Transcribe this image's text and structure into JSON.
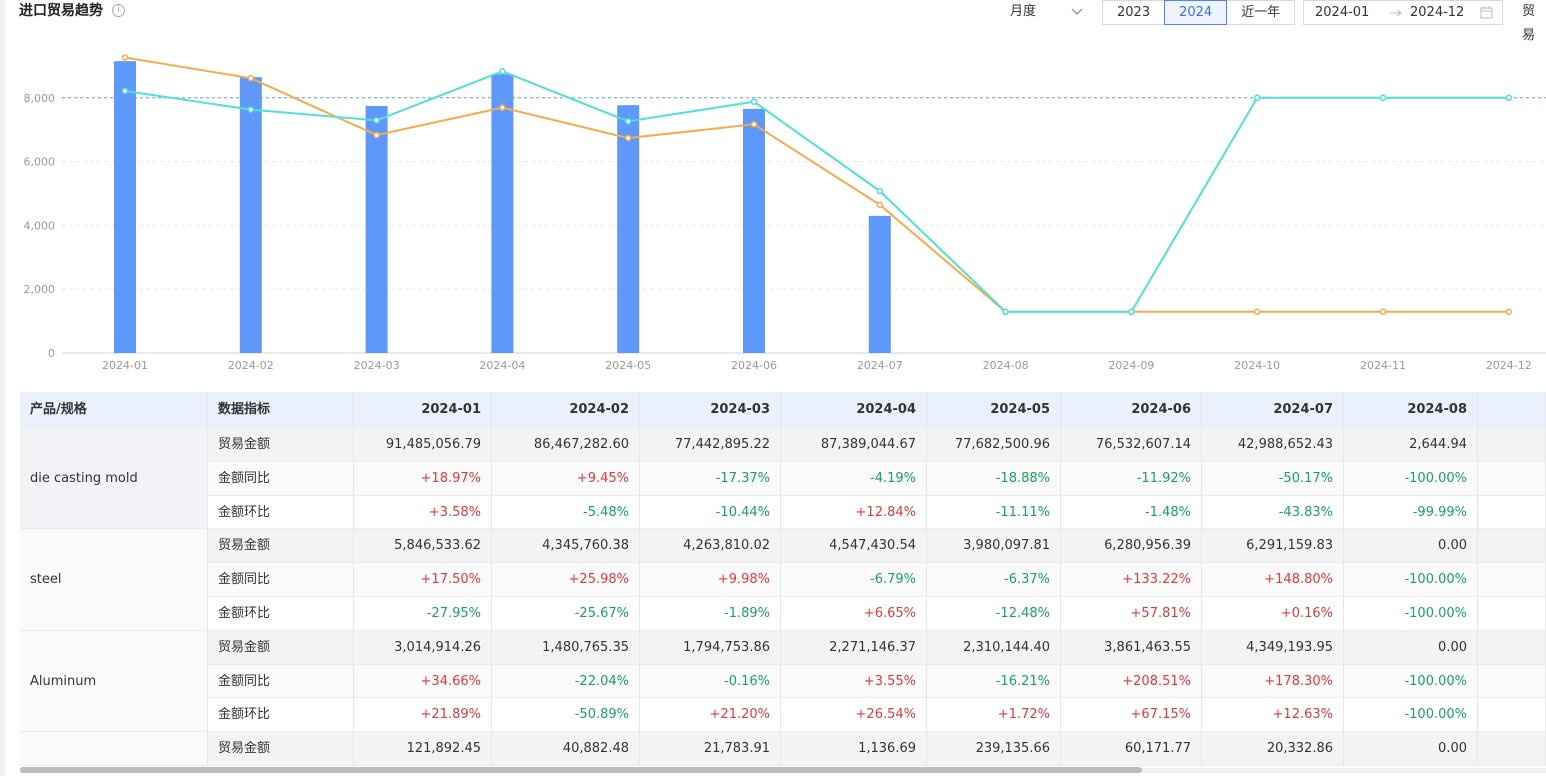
{
  "header": {
    "title": "进口贸易趋势",
    "period_select": "月度",
    "year_buttons": [
      "2023",
      "2024",
      "近一年"
    ],
    "selected_button": 1,
    "date_start": "2024-01",
    "date_end": "2024-12",
    "trade_select": "贸易"
  },
  "chart_data": {
    "type": "bar",
    "categories": [
      "2024-01",
      "2024-02",
      "2024-03",
      "2024-04",
      "2024-05",
      "2024-06",
      "2024-07",
      "2024-08",
      "2024-09",
      "2024-10",
      "2024-11",
      "2024-12"
    ],
    "series": [
      {
        "type": "bar",
        "color": "#5f98fb",
        "values": [
          9149,
          8647,
          7744,
          8739,
          7768,
          7653,
          4299,
          0,
          0,
          0,
          0,
          0
        ]
      },
      {
        "type": "line",
        "color": "#f7aa4c",
        "values": [
          9262,
          8615,
          6831,
          7692,
          6738,
          7169,
          4646,
          1292,
          1292,
          1292,
          1292,
          1292
        ]
      },
      {
        "type": "line",
        "color": "#4fe1d3",
        "values": [
          8215,
          7631,
          7292,
          8831,
          7262,
          7877,
          5077,
          1292,
          1292,
          8000,
          8000,
          8000
        ]
      }
    ],
    "markline": {
      "value": 8000,
      "color": "#6b9ef2"
    },
    "ylim": [
      0,
      10000
    ],
    "yticks": [
      0,
      {
        "value": 2000,
        "label": "2,000"
      },
      {
        "value": 4000,
        "label": "4,000"
      },
      {
        "value": 6000,
        "label": "6,000"
      },
      {
        "value": 8000,
        "label": "8,000"
      }
    ],
    "grid": true
  },
  "table": {
    "columns": [
      "产品/规格",
      "数据指标",
      "2024-01",
      "2024-02",
      "2024-03",
      "2024-04",
      "2024-05",
      "2024-06",
      "2024-07",
      "2024-08"
    ],
    "groups": [
      {
        "product": "die casting mold",
        "rows": [
          {
            "metric": "贸易金额",
            "cells": [
              "91,485,056.79",
              "86,467,282.60",
              "77,442,895.22",
              "87,389,044.67",
              "77,682,500.96",
              "76,532,607.14",
              "42,988,652.43",
              "2,644.94"
            ]
          },
          {
            "metric": "金额同比",
            "cells": [
              "+18.97%",
              "+9.45%",
              "-17.37%",
              "-4.19%",
              "-18.88%",
              "-11.92%",
              "-50.17%",
              "-100.00%"
            ]
          },
          {
            "metric": "金额环比",
            "cells": [
              "+3.58%",
              "-5.48%",
              "-10.44%",
              "+12.84%",
              "-11.11%",
              "-1.48%",
              "-43.83%",
              "-99.99%"
            ]
          }
        ]
      },
      {
        "product": "steel",
        "rows": [
          {
            "metric": "贸易金额",
            "cells": [
              "5,846,533.62",
              "4,345,760.38",
              "4,263,810.02",
              "4,547,430.54",
              "3,980,097.81",
              "6,280,956.39",
              "6,291,159.83",
              "0.00"
            ]
          },
          {
            "metric": "金额同比",
            "cells": [
              "+17.50%",
              "+25.98%",
              "+9.98%",
              "-6.79%",
              "-6.37%",
              "+133.22%",
              "+148.80%",
              "-100.00%"
            ]
          },
          {
            "metric": "金额环比",
            "cells": [
              "-27.95%",
              "-25.67%",
              "-1.89%",
              "+6.65%",
              "-12.48%",
              "+57.81%",
              "+0.16%",
              "-100.00%"
            ]
          }
        ]
      },
      {
        "product": "Aluminum",
        "rows": [
          {
            "metric": "贸易金额",
            "cells": [
              "3,014,914.26",
              "1,480,765.35",
              "1,794,753.86",
              "2,271,146.37",
              "2,310,144.40",
              "3,861,463.55",
              "4,349,193.95",
              "0.00"
            ]
          },
          {
            "metric": "金额同比",
            "cells": [
              "+34.66%",
              "-22.04%",
              "-0.16%",
              "+3.55%",
              "-16.21%",
              "+208.51%",
              "+178.30%",
              "-100.00%"
            ]
          },
          {
            "metric": "金额环比",
            "cells": [
              "+21.89%",
              "-50.89%",
              "+21.20%",
              "+26.54%",
              "+1.72%",
              "+67.15%",
              "+12.63%",
              "-100.00%"
            ]
          }
        ]
      },
      {
        "product": null,
        "rows": [
          {
            "metric": "贸易金额",
            "cells": [
              "121,892.45",
              "40,882.48",
              "21,783.91",
              "1,136.69",
              "239,135.66",
              "60,171.77",
              "20,332.86",
              "0.00"
            ]
          }
        ]
      }
    ]
  }
}
